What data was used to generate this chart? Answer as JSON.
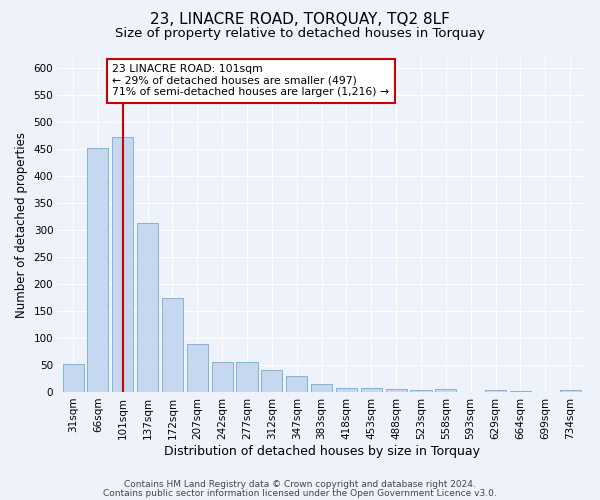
{
  "title": "23, LINACRE ROAD, TORQUAY, TQ2 8LF",
  "subtitle": "Size of property relative to detached houses in Torquay",
  "xlabel": "Distribution of detached houses by size in Torquay",
  "ylabel": "Number of detached properties",
  "categories": [
    "31sqm",
    "66sqm",
    "101sqm",
    "137sqm",
    "172sqm",
    "207sqm",
    "242sqm",
    "277sqm",
    "312sqm",
    "347sqm",
    "383sqm",
    "418sqm",
    "453sqm",
    "488sqm",
    "523sqm",
    "558sqm",
    "593sqm",
    "629sqm",
    "664sqm",
    "699sqm",
    "734sqm"
  ],
  "values": [
    52,
    452,
    472,
    313,
    175,
    88,
    55,
    55,
    40,
    30,
    14,
    8,
    7,
    5,
    4,
    6,
    0,
    3,
    1,
    0,
    4
  ],
  "highlight_index": 2,
  "bar_color": "#c5d8f0",
  "bar_edge_color": "#7aaacc",
  "highlight_line_color": "#cc0000",
  "annotation_text": "23 LINACRE ROAD: 101sqm\n← 29% of detached houses are smaller (497)\n71% of semi-detached houses are larger (1,216) →",
  "annotation_box_color": "#ffffff",
  "annotation_box_edge_color": "#cc0000",
  "ylim": [
    0,
    620
  ],
  "yticks": [
    0,
    50,
    100,
    150,
    200,
    250,
    300,
    350,
    400,
    450,
    500,
    550,
    600
  ],
  "footer_line1": "Contains HM Land Registry data © Crown copyright and database right 2024.",
  "footer_line2": "Contains public sector information licensed under the Open Government Licence v3.0.",
  "background_color": "#eef2fa",
  "plot_bg_color": "#eef2fa",
  "grid_color": "#ffffff",
  "title_fontsize": 11,
  "subtitle_fontsize": 9.5,
  "ylabel_fontsize": 8.5,
  "xlabel_fontsize": 9,
  "tick_fontsize": 7.5,
  "footer_fontsize": 6.5
}
